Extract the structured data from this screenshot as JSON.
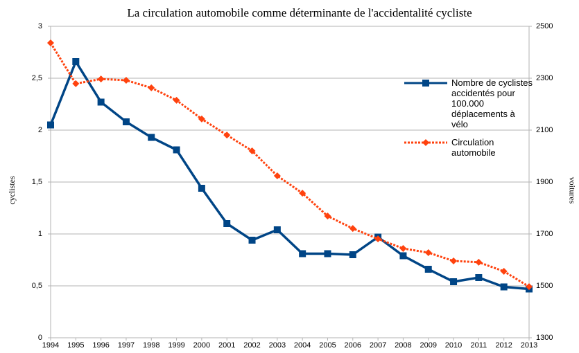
{
  "chart_data": {
    "type": "line",
    "title": "La circulation automobile comme déterminante de l'accidentalité cycliste",
    "ylabel": "cyclistes",
    "y2label": "voitures",
    "categories": [
      "1994",
      "1995",
      "1996",
      "1997",
      "1998",
      "1999",
      "2000",
      "2001",
      "2002",
      "2003",
      "2004",
      "2005",
      "2006",
      "2007",
      "2008",
      "2009",
      "2010",
      "2011",
      "2012",
      "2013"
    ],
    "series": [
      {
        "name": "Nombre de cyclistes accidentés pour 100.000 déplacements à vélo",
        "color": "#004586",
        "marker": "square",
        "values": [
          2.05,
          2.66,
          2.27,
          2.08,
          1.93,
          1.81,
          1.44,
          1.1,
          0.94,
          1.04,
          0.81,
          0.81,
          0.8,
          0.97,
          0.79,
          0.66,
          0.54,
          0.58,
          0.49,
          0.47
        ]
      },
      {
        "name": "Circulation automobile",
        "color": "#ff420e",
        "marker": "diamond",
        "axis": "y2",
        "values": [
          2436,
          2279,
          2297,
          2292,
          2263,
          2215,
          2143,
          2081,
          2020,
          1924,
          1857,
          1769,
          1721,
          1681,
          1644,
          1628,
          1596,
          1591,
          1556,
          1497
        ]
      }
    ],
    "ylim": [
      0,
      3
    ],
    "yticks": [
      0,
      {
        "value": 0.5,
        "label": "0,5"
      },
      1,
      {
        "value": 1.5,
        "label": "1,5"
      },
      2,
      {
        "value": 2.5,
        "label": "2,5"
      },
      3
    ],
    "y2lim": [
      1300,
      2500
    ],
    "y2ticks": [
      1300,
      1500,
      1700,
      1900,
      2100,
      2300,
      2500
    ],
    "grid": true,
    "legend": "right"
  }
}
